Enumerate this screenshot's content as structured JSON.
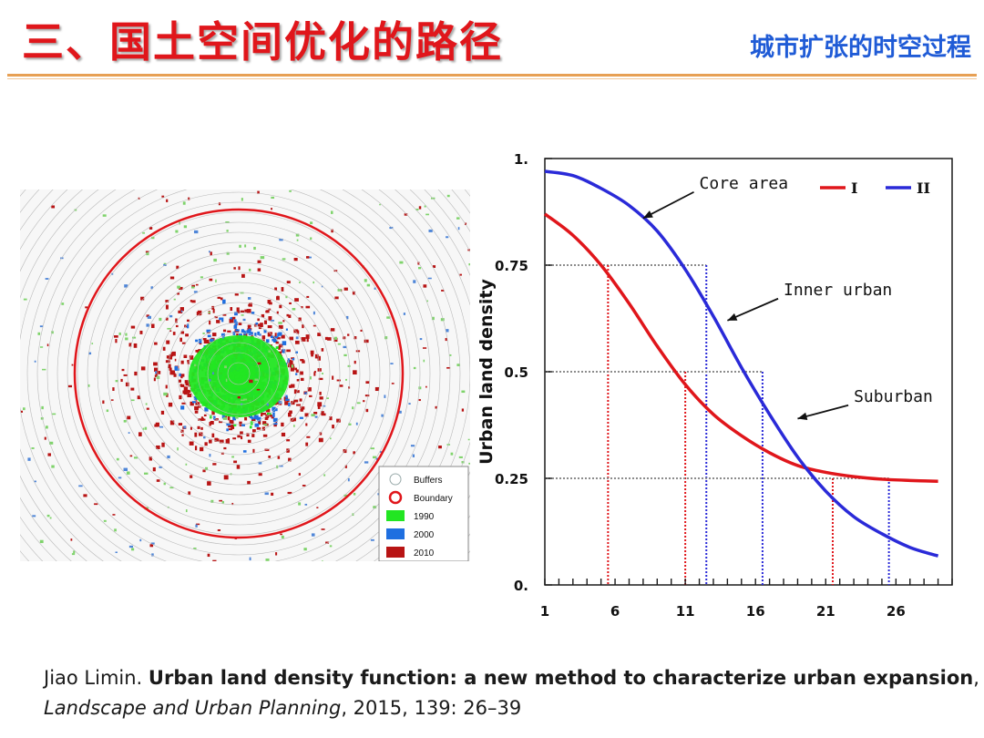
{
  "header": {
    "title": "三、国土空间优化的路径",
    "subtitle": "城市扩张的时空过程"
  },
  "map": {
    "legend": [
      {
        "label": "Buffers",
        "color": "#ffffff",
        "kind": "ring"
      },
      {
        "label": "Boundary",
        "color": "#e0161b",
        "kind": "ring"
      },
      {
        "label": "1990",
        "color": "#22e622",
        "kind": "swatch"
      },
      {
        "label": "2000",
        "color": "#1f6fe0",
        "kind": "swatch"
      },
      {
        "label": "2010",
        "color": "#b81414",
        "kind": "swatch"
      }
    ]
  },
  "chart_data": {
    "type": "line",
    "ylabel": "Urban land density",
    "xlabel": "",
    "xlim": [
      1,
      30
    ],
    "ylim": [
      0,
      1
    ],
    "x_ticks": [
      1,
      6,
      11,
      16,
      21,
      26
    ],
    "x_tick_labels": [
      "1",
      "6",
      "11",
      "16",
      "21",
      "26"
    ],
    "y_ticks": [
      0,
      0.25,
      0.5,
      0.75,
      1
    ],
    "y_tick_labels": [
      "0.",
      "0.25",
      "0.5",
      "0.75",
      "1."
    ],
    "legend_position": "top-right",
    "series": [
      {
        "name": "I",
        "color": "#e0161b",
        "x": [
          1,
          3,
          5,
          7,
          9,
          11,
          13,
          15,
          17,
          19,
          21,
          23,
          25,
          27,
          29
        ],
        "y": [
          0.87,
          0.82,
          0.75,
          0.66,
          0.56,
          0.47,
          0.4,
          0.35,
          0.31,
          0.28,
          0.264,
          0.254,
          0.248,
          0.245,
          0.243
        ]
      },
      {
        "name": "II",
        "color": "#2a2ad8",
        "x": [
          1,
          3,
          5,
          7,
          9,
          11,
          13,
          15,
          17,
          19,
          21,
          23,
          25,
          27,
          29
        ],
        "y": [
          0.97,
          0.96,
          0.93,
          0.89,
          0.83,
          0.74,
          0.63,
          0.51,
          0.4,
          0.3,
          0.22,
          0.16,
          0.12,
          0.088,
          0.068
        ]
      }
    ],
    "reference_lines": [
      {
        "y": 0.75,
        "x_red": 5.5,
        "x_blue": 12.5
      },
      {
        "y": 0.5,
        "x_red": 11,
        "x_blue": 16.5
      },
      {
        "y": 0.25,
        "x_red": 21.5,
        "x_blue": 25.5
      }
    ],
    "annotations": [
      {
        "text": "Core area",
        "tx": 12,
        "ty": 0.93,
        "ax": 8,
        "ay": 0.86
      },
      {
        "text": "Inner urban",
        "tx": 18,
        "ty": 0.68,
        "ax": 14,
        "ay": 0.62
      },
      {
        "text": "Suburban",
        "tx": 23,
        "ty": 0.43,
        "ax": 19,
        "ay": 0.39
      }
    ]
  },
  "citation": {
    "author": "Jiao Limin.",
    "article_title": "Urban land density function: a new method to characterize urban expansion",
    "journal": "Landscape and Urban Planning",
    "details": ", 2015, 139: 26–39"
  }
}
